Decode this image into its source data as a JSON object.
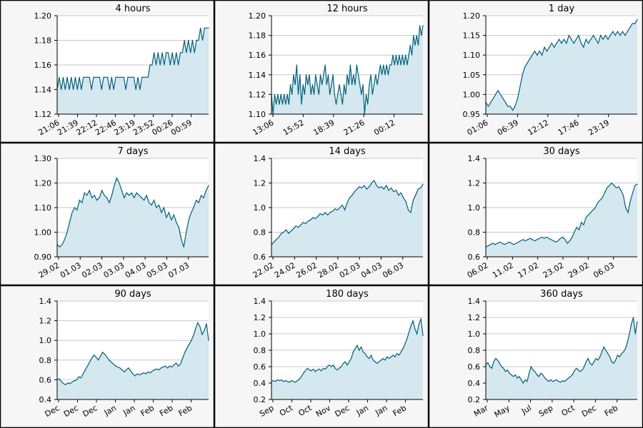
{
  "colors": {
    "line": "#00607a",
    "fill": "#d5e7ef",
    "grid": "#c8c8c8",
    "frame": "#000000",
    "background": "#f6f6f6"
  },
  "chart_data": [
    {
      "type": "area",
      "title": "4 hours",
      "ylim": [
        1.12,
        1.2
      ],
      "y_ticks": [
        "1.12",
        "1.14",
        "1.16",
        "1.18",
        "1.20"
      ],
      "x_ticks": [
        "21:06",
        "21:39",
        "22:12",
        "22:46",
        "23:19",
        "23:52",
        "00:26",
        "00:59"
      ],
      "grid": true,
      "values": [
        1.14,
        1.15,
        1.14,
        1.15,
        1.14,
        1.15,
        1.14,
        1.15,
        1.14,
        1.15,
        1.14,
        1.15,
        1.14,
        1.15,
        1.15,
        1.15,
        1.15,
        1.14,
        1.15,
        1.15,
        1.15,
        1.15,
        1.14,
        1.15,
        1.15,
        1.15,
        1.14,
        1.15,
        1.14,
        1.15,
        1.15,
        1.15,
        1.15,
        1.15,
        1.14,
        1.15,
        1.15,
        1.15,
        1.15,
        1.14,
        1.15,
        1.14,
        1.15,
        1.15,
        1.15,
        1.15,
        1.16,
        1.16,
        1.17,
        1.16,
        1.17,
        1.16,
        1.17,
        1.16,
        1.17,
        1.17,
        1.16,
        1.17,
        1.16,
        1.17,
        1.16,
        1.17,
        1.17,
        1.18,
        1.17,
        1.18,
        1.17,
        1.18,
        1.17,
        1.18,
        1.18,
        1.19,
        1.18,
        1.19,
        1.19,
        1.19
      ]
    },
    {
      "type": "area",
      "title": "12 hours",
      "ylim": [
        1.1,
        1.2
      ],
      "y_ticks": [
        "1.10",
        "1.12",
        "1.14",
        "1.16",
        "1.18",
        "1.20"
      ],
      "x_ticks": [
        "13:06",
        "15:52",
        "18:39",
        "21:26",
        "00:12"
      ],
      "grid": true,
      "values": [
        1.12,
        1.1,
        1.12,
        1.11,
        1.12,
        1.11,
        1.12,
        1.11,
        1.12,
        1.11,
        1.12,
        1.11,
        1.13,
        1.12,
        1.14,
        1.13,
        1.15,
        1.12,
        1.14,
        1.11,
        1.13,
        1.12,
        1.14,
        1.13,
        1.14,
        1.12,
        1.13,
        1.12,
        1.14,
        1.13,
        1.12,
        1.14,
        1.13,
        1.14,
        1.15,
        1.13,
        1.14,
        1.12,
        1.13,
        1.14,
        1.12,
        1.11,
        1.12,
        1.13,
        1.12,
        1.11,
        1.13,
        1.12,
        1.14,
        1.13,
        1.15,
        1.13,
        1.14,
        1.13,
        1.15,
        1.14,
        1.13,
        1.12,
        1.13,
        1.1,
        1.12,
        1.11,
        1.13,
        1.14,
        1.12,
        1.13,
        1.14,
        1.13,
        1.14,
        1.15,
        1.14,
        1.15,
        1.14,
        1.15,
        1.14,
        1.15,
        1.15,
        1.16,
        1.15,
        1.16,
        1.15,
        1.16,
        1.15,
        1.16,
        1.15,
        1.16,
        1.15,
        1.16,
        1.17,
        1.16,
        1.18,
        1.17,
        1.18,
        1.17,
        1.19,
        1.18,
        1.19
      ]
    },
    {
      "type": "area",
      "title": "1 day",
      "ylim": [
        0.95,
        1.2
      ],
      "y_ticks": [
        "0.95",
        "1.00",
        "1.05",
        "1.10",
        "1.15",
        "1.20"
      ],
      "x_ticks": [
        "01:06",
        "06:39",
        "12:12",
        "17:46",
        "23:19"
      ],
      "grid": true,
      "values": [
        0.98,
        0.97,
        0.98,
        0.99,
        1.0,
        1.01,
        1.0,
        0.99,
        0.98,
        0.97,
        0.97,
        0.96,
        0.97,
        0.99,
        1.02,
        1.05,
        1.07,
        1.08,
        1.09,
        1.1,
        1.11,
        1.1,
        1.11,
        1.1,
        1.12,
        1.11,
        1.12,
        1.13,
        1.12,
        1.13,
        1.14,
        1.13,
        1.14,
        1.13,
        1.15,
        1.14,
        1.13,
        1.14,
        1.15,
        1.13,
        1.12,
        1.14,
        1.13,
        1.14,
        1.15,
        1.14,
        1.13,
        1.15,
        1.14,
        1.15,
        1.14,
        1.15,
        1.16,
        1.15,
        1.16,
        1.15,
        1.16,
        1.15,
        1.16,
        1.17,
        1.18,
        1.18,
        1.19
      ]
    },
    {
      "type": "area",
      "title": "7 days",
      "ylim": [
        0.9,
        1.3
      ],
      "y_ticks": [
        "0.90",
        "1.00",
        "1.10",
        "1.20",
        "1.30"
      ],
      "x_ticks": [
        "29.02",
        "01.03",
        "02.03",
        "03.03",
        "04.03",
        "05.03",
        "07.03"
      ],
      "grid": true,
      "values": [
        0.95,
        0.94,
        0.95,
        0.97,
        1.0,
        1.04,
        1.08,
        1.1,
        1.09,
        1.13,
        1.12,
        1.16,
        1.15,
        1.17,
        1.14,
        1.15,
        1.13,
        1.14,
        1.17,
        1.15,
        1.14,
        1.12,
        1.15,
        1.19,
        1.22,
        1.2,
        1.17,
        1.14,
        1.16,
        1.15,
        1.16,
        1.14,
        1.16,
        1.15,
        1.14,
        1.13,
        1.15,
        1.12,
        1.11,
        1.13,
        1.1,
        1.11,
        1.08,
        1.1,
        1.06,
        1.08,
        1.05,
        1.07,
        1.04,
        1.02,
        0.97,
        0.94,
        1.0,
        1.05,
        1.08,
        1.1,
        1.13,
        1.12,
        1.15,
        1.14,
        1.17,
        1.19
      ]
    },
    {
      "type": "area",
      "title": "14 days",
      "ylim": [
        0.6,
        1.4
      ],
      "y_ticks": [
        "0.6",
        "0.8",
        "1.0",
        "1.2",
        "1.4"
      ],
      "x_ticks": [
        "22.02",
        "24.02",
        "26.02",
        "28.02",
        "02.03",
        "04.03",
        "06.03"
      ],
      "grid": true,
      "values": [
        0.7,
        0.72,
        0.74,
        0.76,
        0.79,
        0.8,
        0.82,
        0.79,
        0.81,
        0.83,
        0.85,
        0.84,
        0.86,
        0.88,
        0.87,
        0.89,
        0.9,
        0.92,
        0.91,
        0.93,
        0.95,
        0.94,
        0.96,
        0.94,
        0.96,
        0.97,
        0.99,
        0.98,
        1.0,
        1.02,
        0.98,
        1.04,
        1.08,
        1.1,
        1.13,
        1.15,
        1.17,
        1.16,
        1.18,
        1.15,
        1.17,
        1.2,
        1.22,
        1.18,
        1.16,
        1.17,
        1.15,
        1.18,
        1.14,
        1.16,
        1.13,
        1.14,
        1.1,
        1.12,
        1.08,
        1.05,
        0.98,
        0.96,
        1.06,
        1.1,
        1.15,
        1.16,
        1.19
      ]
    },
    {
      "type": "area",
      "title": "30 days",
      "ylim": [
        0.6,
        1.4
      ],
      "y_ticks": [
        "0.6",
        "0.8",
        "1.0",
        "1.2",
        "1.4"
      ],
      "x_ticks": [
        "06.02",
        "11.02",
        "17.02",
        "23.02",
        "29.02",
        "06.03"
      ],
      "grid": true,
      "values": [
        0.68,
        0.69,
        0.7,
        0.71,
        0.7,
        0.71,
        0.72,
        0.71,
        0.7,
        0.71,
        0.72,
        0.71,
        0.7,
        0.71,
        0.72,
        0.73,
        0.74,
        0.73,
        0.74,
        0.75,
        0.74,
        0.73,
        0.74,
        0.75,
        0.76,
        0.75,
        0.76,
        0.75,
        0.74,
        0.73,
        0.72,
        0.73,
        0.75,
        0.76,
        0.74,
        0.71,
        0.73,
        0.76,
        0.8,
        0.84,
        0.82,
        0.88,
        0.86,
        0.92,
        0.94,
        0.96,
        0.98,
        1.0,
        1.04,
        1.06,
        1.08,
        1.12,
        1.16,
        1.18,
        1.2,
        1.18,
        1.16,
        1.17,
        1.14,
        1.1,
        1.0,
        0.96,
        1.05,
        1.12,
        1.18,
        1.19
      ]
    },
    {
      "type": "area",
      "title": "90 days",
      "ylim": [
        0.4,
        1.4
      ],
      "y_ticks": [
        "0.4",
        "0.6",
        "0.8",
        "1.0",
        "1.2",
        "1.4"
      ],
      "x_ticks": [
        "Dec",
        "Dec",
        "Dec",
        "Jan",
        "Jan",
        "Feb",
        "Feb",
        "Feb"
      ],
      "grid": true,
      "values": [
        0.6,
        0.61,
        0.58,
        0.56,
        0.55,
        0.57,
        0.56,
        0.58,
        0.59,
        0.6,
        0.63,
        0.62,
        0.66,
        0.7,
        0.74,
        0.78,
        0.82,
        0.85,
        0.83,
        0.8,
        0.84,
        0.88,
        0.86,
        0.83,
        0.8,
        0.78,
        0.76,
        0.74,
        0.73,
        0.72,
        0.7,
        0.68,
        0.7,
        0.72,
        0.69,
        0.66,
        0.64,
        0.66,
        0.65,
        0.66,
        0.67,
        0.66,
        0.68,
        0.67,
        0.69,
        0.7,
        0.71,
        0.7,
        0.72,
        0.73,
        0.74,
        0.72,
        0.74,
        0.73,
        0.75,
        0.77,
        0.74,
        0.76,
        0.82,
        0.88,
        0.92,
        0.96,
        1.0,
        1.05,
        1.12,
        1.18,
        1.14,
        1.06,
        1.1,
        1.17,
        1.0
      ]
    },
    {
      "type": "area",
      "title": "180 days",
      "ylim": [
        0.2,
        1.4
      ],
      "y_ticks": [
        "0.2",
        "0.4",
        "0.6",
        "0.8",
        "1.0",
        "1.2",
        "1.4"
      ],
      "x_ticks": [
        "Sep",
        "Oct",
        "Oct",
        "Nov",
        "Dec",
        "Jan",
        "Jan",
        "Feb"
      ],
      "grid": true,
      "values": [
        0.42,
        0.43,
        0.42,
        0.44,
        0.43,
        0.44,
        0.42,
        0.43,
        0.42,
        0.41,
        0.43,
        0.42,
        0.41,
        0.43,
        0.45,
        0.48,
        0.52,
        0.55,
        0.58,
        0.56,
        0.55,
        0.57,
        0.54,
        0.56,
        0.57,
        0.55,
        0.58,
        0.57,
        0.6,
        0.62,
        0.6,
        0.62,
        0.58,
        0.56,
        0.58,
        0.6,
        0.64,
        0.66,
        0.62,
        0.66,
        0.7,
        0.78,
        0.82,
        0.86,
        0.8,
        0.84,
        0.78,
        0.76,
        0.72,
        0.7,
        0.74,
        0.68,
        0.66,
        0.64,
        0.66,
        0.68,
        0.7,
        0.68,
        0.72,
        0.7,
        0.72,
        0.74,
        0.72,
        0.76,
        0.74,
        0.78,
        0.82,
        0.88,
        0.94,
        1.02,
        1.1,
        1.16,
        1.06,
        1.0,
        1.12,
        1.18,
        0.98
      ]
    },
    {
      "type": "area",
      "title": "360 days",
      "ylim": [
        0.2,
        1.4
      ],
      "y_ticks": [
        "0.2",
        "0.4",
        "0.6",
        "0.8",
        "1.0",
        "1.2",
        "1.4"
      ],
      "x_ticks": [
        "Mar",
        "May",
        "Jul",
        "Sep",
        "Oct",
        "Dec",
        "Feb"
      ],
      "grid": true,
      "values": [
        0.62,
        0.65,
        0.6,
        0.58,
        0.66,
        0.7,
        0.68,
        0.64,
        0.6,
        0.58,
        0.54,
        0.56,
        0.52,
        0.5,
        0.48,
        0.5,
        0.46,
        0.48,
        0.44,
        0.4,
        0.44,
        0.42,
        0.52,
        0.6,
        0.56,
        0.54,
        0.5,
        0.48,
        0.52,
        0.5,
        0.46,
        0.44,
        0.42,
        0.44,
        0.42,
        0.43,
        0.44,
        0.42,
        0.41,
        0.43,
        0.42,
        0.44,
        0.46,
        0.48,
        0.5,
        0.55,
        0.58,
        0.56,
        0.54,
        0.56,
        0.6,
        0.66,
        0.7,
        0.64,
        0.62,
        0.66,
        0.7,
        0.68,
        0.72,
        0.78,
        0.84,
        0.8,
        0.76,
        0.72,
        0.66,
        0.64,
        0.68,
        0.74,
        0.72,
        0.76,
        0.78,
        0.82,
        0.9,
        1.0,
        1.12,
        1.2,
        1.0,
        1.15
      ]
    }
  ]
}
